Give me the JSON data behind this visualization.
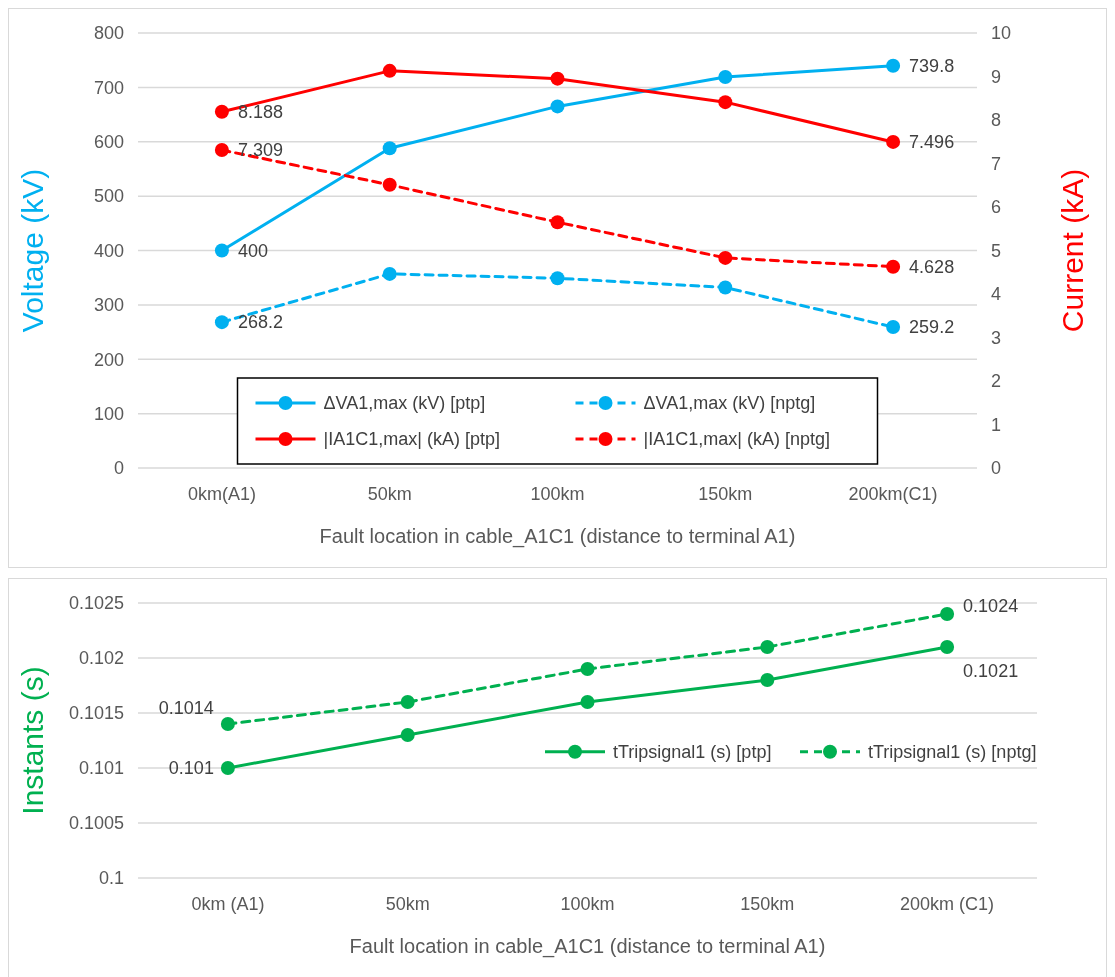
{
  "chart_data": [
    {
      "type": "line",
      "categories": [
        "0km(A1)",
        "50km",
        "100km",
        "150km",
        "200km(C1)"
      ],
      "xlabel": "Fault location in cable_A1C1 (distance to terminal A1)",
      "ylabel": "Voltage (kV)",
      "y2label": "Current (kA)",
      "ylim": [
        0,
        800
      ],
      "yticks": [
        0,
        100,
        200,
        300,
        400,
        500,
        600,
        700,
        800
      ],
      "y2lim": [
        0,
        10
      ],
      "y2ticks": [
        0,
        1,
        2,
        3,
        4,
        5,
        6,
        7,
        8,
        9,
        10
      ],
      "grid": "y",
      "legend": "bottom",
      "marker": "circle",
      "series": [
        {
          "name": "ΔVA1,max (kV) [ptp]",
          "color": "#00b0f0",
          "line_style": "solid",
          "values": [
            400,
            588,
            665,
            719,
            739.8
          ],
          "value_labels": [
            "400",
            null,
            null,
            null,
            "739.8"
          ]
        },
        {
          "name": "ΔVA1,max (kV) [nptg]",
          "color": "#00b0f0",
          "line_style": "dashed",
          "values": [
            268.2,
            357,
            349,
            332,
            259.2
          ],
          "value_labels": [
            "268.2",
            null,
            null,
            null,
            "259.2"
          ]
        },
        {
          "name": "|IA1C1,max| (kA) [ptp]",
          "color": "#ff0000",
          "line_style": "solid",
          "axis": "y2",
          "values": [
            8.188,
            9.13,
            8.95,
            8.41,
            7.496
          ],
          "value_labels": [
            "8.188",
            null,
            null,
            null,
            "7.496"
          ]
        },
        {
          "name": "|IA1C1,max| (kA) [nptg]",
          "color": "#ff0000",
          "line_style": "dashed",
          "axis": "y2",
          "values": [
            7.309,
            6.51,
            5.65,
            4.83,
            4.628
          ],
          "value_labels": [
            "7.309",
            null,
            null,
            null,
            "4.628"
          ]
        }
      ]
    },
    {
      "type": "line",
      "categories": [
        "0km (A1)",
        "50km",
        "100km",
        "150km",
        "200km (C1)"
      ],
      "xlabel": "Fault location in cable_A1C1 (distance to terminal A1)",
      "ylabel": "Instants (s)",
      "ylim": [
        0.1,
        0.1025
      ],
      "yticks": [
        0.1,
        0.1005,
        0.101,
        0.1015,
        0.102,
        0.1025
      ],
      "grid": "y",
      "legend": "right",
      "marker": "circle",
      "series": [
        {
          "name": "tTripsignal1 (s) [ptp]",
          "color": "#00b050",
          "line_style": "solid",
          "values": [
            0.101,
            0.1013,
            0.1016,
            0.1018,
            0.1021
          ],
          "value_labels": [
            "0.101",
            null,
            null,
            null,
            "0.1021"
          ]
        },
        {
          "name": "tTripsignal1 (s) [nptg]",
          "color": "#00b050",
          "line_style": "dashed",
          "values": [
            0.1014,
            0.1016,
            0.1019,
            0.1021,
            0.1024
          ],
          "value_labels": [
            "0.1014",
            null,
            null,
            null,
            "0.1024"
          ]
        }
      ]
    }
  ]
}
